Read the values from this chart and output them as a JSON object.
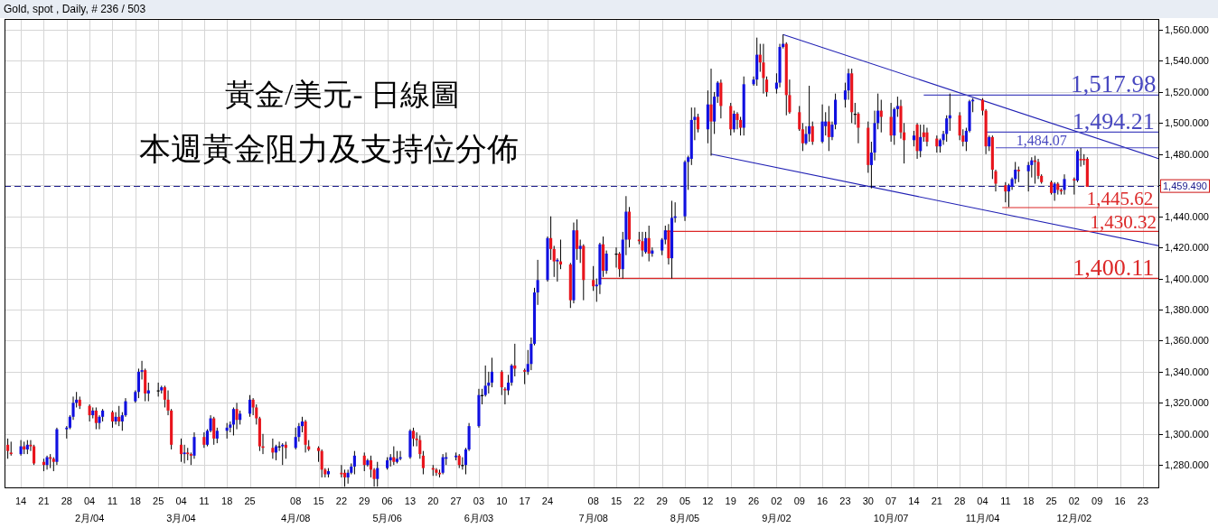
{
  "chart_data": {
    "type": "candlestick",
    "title": "黃金/美元- 日線圖",
    "subtitle": "本週黃金阻力及支持位分佈",
    "annotations": [
      "Gold, spot , Daily, # 236 / 503",
      {
        "text": "1,517.98",
        "x": "--12-14",
        "y": 1517.98
      },
      {
        "text": "1,494.21",
        "x": "--12-14",
        "y": 1494.21
      },
      {
        "text": "1,484.07",
        "x": "--11-22",
        "y": 1484.07
      },
      {
        "text": "1,445.62",
        "x": "--12-16",
        "y": 1445.62
      },
      {
        "text": "1,430.32",
        "x": "--12-17",
        "y": 1430.32
      },
      {
        "text": "1,400.11",
        "x": "--12-14",
        "y": 1400.11
      }
    ],
    "x": [
      "--01-10",
      "--01-11",
      "--01-14",
      "--01-15",
      "--01-16",
      "--01-17",
      "--01-18",
      "--01-21",
      "--01-22",
      "--01-23",
      "--01-24",
      "--01-25",
      "--01-28",
      "--01-29",
      "--01-30",
      "--01-31",
      "--02-01",
      "--02-04",
      "--02-05",
      "--02-06",
      "--02-07",
      "--02-08",
      "--02-11",
      "--02-12",
      "--02-13",
      "--02-14",
      "--02-15",
      "--02-18",
      "--02-19",
      "--02-20",
      "--02-21",
      "--02-22",
      "--02-25",
      "--02-26",
      "--02-27",
      "--02-28",
      "--03-01",
      "--03-04",
      "--03-05",
      "--03-06",
      "--03-07",
      "--03-08",
      "--03-11",
      "--03-12",
      "--03-13",
      "--03-14",
      "--03-15",
      "--03-18",
      "--03-19",
      "--03-20",
      "--03-21",
      "--03-22",
      "--03-25",
      "--03-26",
      "--03-27",
      "--03-28",
      "--03-29",
      "--04-01",
      "--04-02",
      "--04-03",
      "--04-04",
      "--04-05",
      "--04-08",
      "--04-09",
      "--04-10",
      "--04-11",
      "--04-12",
      "--04-15",
      "--04-16",
      "--04-17",
      "--04-18",
      "--04-22",
      "--04-23",
      "--04-24",
      "--04-25",
      "--04-26",
      "--04-29",
      "--04-30",
      "--05-01",
      "--05-02",
      "--05-03",
      "--05-06",
      "--05-07",
      "--05-08",
      "--05-09",
      "--05-10",
      "--05-13",
      "--05-14",
      "--05-15",
      "--05-16",
      "--05-17",
      "--05-20",
      "--05-21",
      "--05-22",
      "--05-23",
      "--05-24",
      "--05-27",
      "--05-28",
      "--05-29",
      "--05-30",
      "--05-31",
      "--06-03",
      "--06-04",
      "--06-05",
      "--06-06",
      "--06-07",
      "--06-10",
      "--06-11",
      "--06-12",
      "--06-13",
      "--06-14",
      "--06-17",
      "--06-18",
      "--06-19",
      "--06-20",
      "--06-21",
      "--06-24",
      "--06-25",
      "--06-26",
      "--06-27",
      "--06-28",
      "--07-01",
      "--07-02",
      "--07-03",
      "--07-04",
      "--07-05",
      "--07-08",
      "--07-09",
      "--07-10",
      "--07-11",
      "--07-12",
      "--07-15",
      "--07-16",
      "--07-17",
      "--07-18",
      "--07-19",
      "--07-22",
      "--07-23",
      "--07-24",
      "--07-25",
      "--07-26",
      "--07-29",
      "--07-30",
      "--07-31",
      "--08-01",
      "--08-02",
      "--08-05",
      "--08-06",
      "--08-07",
      "--08-08",
      "--08-09",
      "--08-12",
      "--08-13",
      "--08-14",
      "--08-15",
      "--08-16",
      "--08-19",
      "--08-20",
      "--08-21",
      "--08-22",
      "--08-23",
      "--08-26",
      "--08-27",
      "--08-28",
      "--08-29",
      "--08-30",
      "--09-02",
      "--09-03",
      "--09-04",
      "--09-05",
      "--09-06",
      "--09-09",
      "--09-10",
      "--09-11",
      "--09-12",
      "--09-13",
      "--09-16",
      "--09-17",
      "--09-18",
      "--09-19",
      "--09-20",
      "--09-23",
      "--09-24",
      "--09-25",
      "--09-26",
      "--09-27",
      "--09-30",
      "--10-01",
      "--10-02",
      "--10-03",
      "--10-04",
      "--10-07",
      "--10-08",
      "--10-09",
      "--10-10",
      "--10-11",
      "--10-14",
      "--10-15",
      "--10-16",
      "--10-17",
      "--10-18",
      "--10-21",
      "--10-22",
      "--10-23",
      "--10-24",
      "--10-25",
      "--10-28",
      "--10-29",
      "--10-30",
      "--10-31",
      "--11-01",
      "--11-04",
      "--11-05",
      "--11-06",
      "--11-07",
      "--11-08",
      "--11-11",
      "--11-12",
      "--11-13",
      "--11-14",
      "--11-15",
      "--11-18",
      "--11-19",
      "--11-20",
      "--11-21",
      "--11-22",
      "--11-25",
      "--11-26",
      "--11-27",
      "--11-28",
      "--11-29",
      "--12-02",
      "--12-03",
      "--12-04",
      "--12-05",
      "--12-06"
    ],
    "ohlc": [
      [
        1293,
        1297,
        1284,
        1289
      ],
      [
        1288,
        1295,
        1286,
        1287
      ],
      [
        1287,
        1296,
        1286,
        1292
      ],
      [
        1292,
        1295,
        1287,
        1290
      ],
      [
        1290,
        1296,
        1287,
        1293
      ],
      [
        1293,
        1296,
        1289,
        1292
      ],
      [
        1292,
        1293,
        1280,
        1281
      ],
      [
        1282,
        1284,
        1276,
        1280
      ],
      [
        1280,
        1286,
        1277,
        1285
      ],
      [
        1285,
        1287,
        1278,
        1284
      ],
      [
        1284,
        1285,
        1276,
        1282
      ],
      [
        1282,
        1304,
        1280,
        1303
      ],
      [
        1303,
        1305,
        1297,
        1304
      ],
      [
        1304,
        1312,
        1303,
        1311
      ],
      [
        1311,
        1324,
        1309,
        1320
      ],
      [
        1320,
        1327,
        1317,
        1322
      ],
      [
        1322,
        1324,
        1316,
        1318
      ],
      [
        1318,
        1319,
        1308,
        1312
      ],
      [
        1312,
        1317,
        1310,
        1315
      ],
      [
        1315,
        1317,
        1303,
        1307
      ],
      [
        1307,
        1312,
        1303,
        1311
      ],
      [
        1311,
        1316,
        1308,
        1315
      ],
      [
        1314,
        1315,
        1304,
        1308
      ],
      [
        1308,
        1314,
        1306,
        1311
      ],
      [
        1311,
        1318,
        1305,
        1308
      ],
      [
        1308,
        1314,
        1302,
        1312
      ],
      [
        1312,
        1323,
        1311,
        1321
      ],
      [
        1321,
        1328,
        1320,
        1327
      ],
      [
        1327,
        1342,
        1323,
        1340
      ],
      [
        1340,
        1347,
        1335,
        1341
      ],
      [
        1341,
        1342,
        1321,
        1326
      ],
      [
        1326,
        1333,
        1321,
        1328
      ],
      [
        1328,
        1333,
        1324,
        1328
      ],
      [
        1328,
        1331,
        1326,
        1330
      ],
      [
        1330,
        1331,
        1317,
        1322
      ],
      [
        1322,
        1328,
        1312,
        1315
      ],
      [
        1315,
        1316,
        1290,
        1293
      ],
      [
        1293,
        1297,
        1282,
        1287
      ],
      [
        1287,
        1293,
        1281,
        1288
      ],
      [
        1288,
        1291,
        1283,
        1287
      ],
      [
        1287,
        1288,
        1280,
        1286
      ],
      [
        1286,
        1301,
        1284,
        1298
      ],
      [
        1298,
        1301,
        1291,
        1293
      ],
      [
        1293,
        1303,
        1292,
        1302
      ],
      [
        1302,
        1312,
        1301,
        1310
      ],
      [
        1310,
        1311,
        1293,
        1297
      ],
      [
        1297,
        1304,
        1294,
        1302
      ],
      [
        1302,
        1307,
        1297,
        1304
      ],
      [
        1304,
        1308,
        1301,
        1306
      ],
      [
        1306,
        1317,
        1299,
        1316
      ],
      [
        1316,
        1320,
        1303,
        1309
      ],
      [
        1309,
        1315,
        1306,
        1313
      ],
      [
        1313,
        1325,
        1311,
        1322
      ],
      [
        1322,
        1323,
        1312,
        1317
      ],
      [
        1317,
        1319,
        1306,
        1310
      ],
      [
        1310,
        1311,
        1289,
        1292
      ],
      [
        1292,
        1300,
        1287,
        1291
      ],
      [
        1291,
        1297,
        1284,
        1288
      ],
      [
        1288,
        1293,
        1283,
        1292
      ],
      [
        1292,
        1295,
        1289,
        1292
      ],
      [
        1292,
        1294,
        1280,
        1293
      ],
      [
        1293,
        1295,
        1284,
        1291
      ],
      [
        1291,
        1304,
        1290,
        1298
      ],
      [
        1298,
        1307,
        1295,
        1305
      ],
      [
        1305,
        1311,
        1301,
        1308
      ],
      [
        1308,
        1309,
        1288,
        1293
      ],
      [
        1292,
        1296,
        1289,
        1290
      ],
      [
        1291,
        1292,
        1282,
        1289
      ],
      [
        1289,
        1290,
        1272,
        1277
      ],
      [
        1277,
        1278,
        1272,
        1274
      ],
      [
        1274,
        1278,
        1272,
        1276
      ],
      [
        1275,
        1280,
        1272,
        1274
      ],
      [
        1275,
        1277,
        1266,
        1272
      ],
      [
        1272,
        1277,
        1268,
        1275
      ],
      [
        1275,
        1281,
        1274,
        1279
      ],
      [
        1279,
        1289,
        1274,
        1286
      ],
      [
        1286,
        1288,
        1276,
        1280
      ],
      [
        1280,
        1284,
        1279,
        1283
      ],
      [
        1283,
        1286,
        1272,
        1277
      ],
      [
        1277,
        1278,
        1266,
        1271
      ],
      [
        1271,
        1282,
        1266,
        1278
      ],
      [
        1278,
        1285,
        1277,
        1283
      ],
      [
        1283,
        1287,
        1279,
        1285
      ],
      [
        1285,
        1292,
        1280,
        1282
      ],
      [
        1282,
        1289,
        1281,
        1284
      ],
      [
        1284,
        1289,
        1283,
        1285
      ],
      [
        1285,
        1303,
        1284,
        1302
      ],
      [
        1302,
        1304,
        1292,
        1297
      ],
      [
        1297,
        1301,
        1292,
        1296
      ],
      [
        1296,
        1299,
        1284,
        1287
      ],
      [
        1286,
        1289,
        1274,
        1278
      ],
      [
        1278,
        1280,
        1273,
        1277
      ],
      [
        1277,
        1278,
        1273,
        1275
      ],
      [
        1275,
        1277,
        1272,
        1274
      ],
      [
        1275,
        1287,
        1274,
        1285
      ],
      [
        1284,
        1288,
        1280,
        1285
      ],
      [
        1285,
        1288,
        1283,
        1286
      ],
      [
        1286,
        1287,
        1278,
        1280
      ],
      [
        1280,
        1285,
        1277,
        1280
      ],
      [
        1280,
        1291,
        1274,
        1290
      ],
      [
        1290,
        1307,
        1289,
        1305
      ],
      [
        1305,
        1329,
        1304,
        1325
      ],
      [
        1325,
        1329,
        1319,
        1325
      ],
      [
        1325,
        1344,
        1324,
        1331
      ],
      [
        1331,
        1340,
        1326,
        1333
      ],
      [
        1333,
        1349,
        1330,
        1340
      ],
      [
        1340,
        1341,
        1325,
        1330
      ],
      [
        1329,
        1330,
        1319,
        1328
      ],
      [
        1328,
        1338,
        1325,
        1333
      ],
      [
        1333,
        1345,
        1331,
        1344
      ],
      [
        1344,
        1358,
        1337,
        1342
      ],
      [
        1341,
        1342,
        1332,
        1340
      ],
      [
        1340,
        1354,
        1338,
        1345
      ],
      [
        1345,
        1362,
        1341,
        1358
      ],
      [
        1358,
        1394,
        1357,
        1391
      ],
      [
        1391,
        1412,
        1383,
        1399
      ],
      [
        1399,
        1427,
        1398,
        1426
      ],
      [
        1426,
        1440,
        1412,
        1419
      ],
      [
        1419,
        1421,
        1401,
        1411
      ],
      [
        1411,
        1413,
        1398,
        1412
      ],
      [
        1411,
        1425,
        1406,
        1409
      ],
      [
        1409,
        1410,
        1381,
        1386
      ],
      [
        1386,
        1436,
        1384,
        1431
      ],
      [
        1431,
        1438,
        1412,
        1419
      ],
      [
        1419,
        1425,
        1410,
        1421
      ],
      [
        1421,
        1422,
        1386,
        1399
      ],
      [
        1399,
        1408,
        1392,
        1395
      ],
      [
        1395,
        1400,
        1385,
        1396
      ],
      [
        1396,
        1423,
        1390,
        1422
      ],
      [
        1422,
        1427,
        1401,
        1405
      ],
      [
        1405,
        1418,
        1403,
        1416
      ],
      [
        1416,
        1420,
        1407,
        1416
      ],
      [
        1416,
        1417,
        1401,
        1406
      ],
      [
        1406,
        1430,
        1400,
        1425
      ],
      [
        1425,
        1453,
        1415,
        1443
      ],
      [
        1443,
        1446,
        1420,
        1425
      ],
      [
        1425,
        1430,
        1422,
        1424
      ],
      [
        1424,
        1430,
        1414,
        1418
      ],
      [
        1417,
        1430,
        1416,
        1426
      ],
      [
        1426,
        1434,
        1411,
        1416
      ],
      [
        1416,
        1420,
        1414,
        1418
      ],
      [
        1418,
        1426,
        1415,
        1425
      ],
      [
        1425,
        1434,
        1422,
        1431
      ],
      [
        1431,
        1435,
        1409,
        1413
      ],
      [
        1413,
        1450,
        1400,
        1439
      ],
      [
        1439,
        1449,
        1436,
        1440
      ],
      [
        1440,
        1476,
        1437,
        1475
      ],
      [
        1475,
        1479,
        1457,
        1478
      ],
      [
        1477,
        1510,
        1473,
        1502
      ],
      [
        1502,
        1510,
        1489,
        1504
      ],
      [
        1504,
        1506,
        1494,
        1496
      ],
      [
        1496,
        1521,
        1487,
        1512
      ],
      [
        1512,
        1535,
        1479,
        1501
      ],
      [
        1501,
        1520,
        1493,
        1517
      ],
      [
        1517,
        1527,
        1513,
        1526
      ],
      [
        1526,
        1528,
        1503,
        1511
      ],
      [
        1511,
        1513,
        1492,
        1496
      ],
      [
        1496,
        1508,
        1494,
        1506
      ],
      [
        1506,
        1507,
        1496,
        1502
      ],
      [
        1502,
        1504,
        1492,
        1497
      ],
      [
        1497,
        1530,
        1492,
        1525
      ],
      [
        1525,
        1530,
        1524,
        1528
      ],
      [
        1528,
        1555,
        1524,
        1544
      ],
      [
        1544,
        1551,
        1533,
        1539
      ],
      [
        1539,
        1551,
        1519,
        1529
      ],
      [
        1528,
        1530,
        1517,
        1520
      ],
      [
        1522,
        1532,
        1519,
        1526
      ],
      [
        1526,
        1551,
        1523,
        1549
      ],
      [
        1549,
        1557,
        1548,
        1551
      ],
      [
        1551,
        1552,
        1505,
        1518
      ],
      [
        1518,
        1528,
        1506,
        1507
      ],
      [
        1507,
        1511,
        1495,
        1496
      ],
      [
        1496,
        1500,
        1482,
        1487
      ],
      [
        1487,
        1498,
        1486,
        1493
      ],
      [
        1493,
        1524,
        1488,
        1498
      ],
      [
        1498,
        1501,
        1486,
        1488
      ],
      [
        1488,
        1512,
        1487,
        1501
      ],
      [
        1498,
        1507,
        1492,
        1501
      ],
      [
        1501,
        1511,
        1482,
        1491
      ],
      [
        1491,
        1501,
        1489,
        1499
      ],
      [
        1499,
        1519,
        1496,
        1515
      ],
      [
        1515,
        1526,
        1510,
        1521
      ],
      [
        1521,
        1535,
        1515,
        1532
      ],
      [
        1532,
        1535,
        1500,
        1507
      ],
      [
        1506,
        1513,
        1499,
        1506
      ],
      [
        1506,
        1507,
        1487,
        1497
      ],
      [
        1497,
        1501,
        1468,
        1473
      ],
      [
        1473,
        1488,
        1458,
        1481
      ],
      [
        1481,
        1508,
        1476,
        1500
      ],
      [
        1500,
        1519,
        1496,
        1508
      ],
      [
        1508,
        1515,
        1494,
        1504
      ],
      [
        1504,
        1513,
        1488,
        1492
      ],
      [
        1492,
        1510,
        1486,
        1509
      ],
      [
        1509,
        1517,
        1504,
        1511
      ],
      [
        1511,
        1515,
        1490,
        1494
      ],
      [
        1494,
        1500,
        1474,
        1489
      ],
      [
        1489,
        1495,
        1485,
        1492
      ],
      [
        1499,
        1500,
        1477,
        1482
      ],
      [
        1482,
        1499,
        1478,
        1491
      ],
      [
        1494,
        1499,
        1488,
        1491
      ],
      [
        1494,
        1497,
        1485,
        1488
      ],
      [
        1490,
        1492,
        1481,
        1485
      ],
      [
        1485,
        1490,
        1481,
        1489
      ],
      [
        1489,
        1495,
        1486,
        1493
      ],
      [
        1493,
        1505,
        1488,
        1503
      ],
      [
        1503,
        1519,
        1495,
        1505
      ],
      [
        1505,
        1507,
        1489,
        1492
      ],
      [
        1492,
        1496,
        1485,
        1488
      ],
      [
        1488,
        1497,
        1482,
        1495
      ],
      [
        1495,
        1515,
        1494,
        1514
      ],
      [
        1514,
        1516,
        1507,
        1515
      ],
      [
        1515,
        1516,
        1505,
        1508
      ],
      [
        1508,
        1509,
        1480,
        1485
      ],
      [
        1485,
        1492,
        1482,
        1491
      ],
      [
        1491,
        1492,
        1464,
        1470
      ],
      [
        1469,
        1470,
        1456,
        1461
      ],
      [
        1460,
        1462,
        1449,
        1456
      ],
      [
        1456,
        1461,
        1446,
        1460
      ],
      [
        1459,
        1465,
        1457,
        1464
      ],
      [
        1464,
        1475,
        1461,
        1470
      ],
      [
        1470,
        1472,
        1462,
        1469
      ],
      [
        1469,
        1475,
        1456,
        1473
      ],
      [
        1473,
        1478,
        1465,
        1476
      ],
      [
        1476,
        1479,
        1461,
        1475
      ],
      [
        1475,
        1477,
        1464,
        1466
      ],
      [
        1466,
        1467,
        1461,
        1462
      ],
      [
        1462,
        1463,
        1454,
        1455
      ],
      [
        1455,
        1462,
        1450,
        1461
      ],
      [
        1461,
        1462,
        1454,
        1457
      ],
      [
        1457,
        1458,
        1454,
        1456
      ],
      [
        1457,
        1467,
        1454,
        1464
      ],
      [
        1464,
        1465,
        1454,
        1463
      ],
      [
        1463,
        1483,
        1462,
        1482
      ],
      [
        1477,
        1484,
        1472,
        1476
      ],
      [
        1477,
        1480,
        1473,
        1476
      ],
      [
        1477,
        1478,
        1459,
        1459
      ]
    ],
    "colors": [
      "#e8141c",
      "#e8141c",
      "#1010e0",
      "#e8141c",
      "#1010e0",
      "#e8141c",
      "#e8141c",
      "#e8141c",
      "#1010e0",
      "#e8141c",
      "#e8141c",
      "#1010e0",
      "#1010e0",
      "#1010e0",
      "#1010e0",
      "#1010e0",
      "#e8141c",
      "#e8141c",
      "#1010e0",
      "#e8141c",
      "#1010e0",
      "#1010e0",
      "#e8141c",
      "#1010e0",
      "#e8141c",
      "#1010e0",
      "#1010e0",
      "#1010e0",
      "#1010e0",
      "#1010e0",
      "#e8141c",
      "#1010e0",
      "#000000",
      "#1010e0",
      "#e8141c",
      "#e8141c",
      "#e8141c",
      "#e8141c",
      "#1010e0",
      "#e8141c",
      "#e8141c",
      "#1010e0",
      "#e8141c",
      "#1010e0",
      "#1010e0",
      "#e8141c",
      "#1010e0",
      "#1010e0",
      "#1010e0",
      "#1010e0",
      "#e8141c",
      "#1010e0",
      "#1010e0",
      "#e8141c",
      "#e8141c",
      "#e8141c",
      "#e8141c",
      "#e8141c",
      "#1010e0",
      "#000000",
      "#1010e0",
      "#e8141c",
      "#1010e0",
      "#1010e0",
      "#1010e0",
      "#e8141c",
      "#e8141c",
      "#e8141c",
      "#e8141c",
      "#e8141c",
      "#1010e0",
      "#e8141c",
      "#e8141c",
      "#1010e0",
      "#1010e0",
      "#1010e0",
      "#e8141c",
      "#1010e0",
      "#e8141c",
      "#e8141c",
      "#1010e0",
      "#1010e0",
      "#1010e0",
      "#e8141c",
      "#1010e0",
      "#1010e0",
      "#1010e0",
      "#e8141c",
      "#e8141c",
      "#e8141c",
      "#e8141c",
      "#e8141c",
      "#e8141c",
      "#e8141c",
      "#1010e0",
      "#1010e0",
      "#1010e0",
      "#e8141c",
      "#000000",
      "#1010e0",
      "#1010e0",
      "#1010e0",
      "#000000",
      "#1010e0",
      "#1010e0",
      "#1010e0",
      "#e8141c",
      "#e8141c",
      "#1010e0",
      "#1010e0",
      "#e8141c",
      "#e8141c",
      "#1010e0",
      "#1010e0",
      "#1010e0",
      "#1010e0",
      "#1010e0",
      "#e8141c",
      "#e8141c",
      "#1010e0",
      "#e8141c",
      "#e8141c",
      "#1010e0",
      "#e8141c",
      "#1010e0",
      "#e8141c",
      "#e8141c",
      "#1010e0",
      "#1010e0",
      "#e8141c",
      "#1010e0",
      "#000000",
      "#e8141c",
      "#1010e0",
      "#1010e0",
      "#e8141c",
      "#e8141c",
      "#e8141c",
      "#1010e0",
      "#e8141c",
      "#1010e0",
      "#1010e0",
      "#1010e0",
      "#e8141c",
      "#1010e0",
      "#1010e0",
      "#1010e0",
      "#1010e0",
      "#1010e0",
      "#1010e0",
      "#e8141c",
      "#1010e0",
      "#e8141c",
      "#1010e0",
      "#1010e0",
      "#e8141c",
      "#e8141c",
      "#1010e0",
      "#e8141c",
      "#e8141c",
      "#1010e0",
      "#1010e0",
      "#1010e0",
      "#e8141c",
      "#e8141c",
      "#e8141c",
      "#1010e0",
      "#1010e0",
      "#1010e0",
      "#e8141c",
      "#e8141c",
      "#e8141c",
      "#e8141c",
      "#1010e0",
      "#1010e0",
      "#e8141c",
      "#1010e0",
      "#1010e0",
      "#e8141c",
      "#1010e0",
      "#1010e0",
      "#1010e0",
      "#1010e0",
      "#e8141c",
      "#000000",
      "#e8141c",
      "#e8141c",
      "#1010e0",
      "#1010e0",
      "#1010e0",
      "#e8141c",
      "#e8141c",
      "#1010e0",
      "#1010e0",
      "#e8141c",
      "#e8141c",
      "#1010e0",
      "#e8141c",
      "#1010e0",
      "#e8141c",
      "#e8141c",
      "#e8141c",
      "#1010e0",
      "#1010e0",
      "#1010e0",
      "#1010e0",
      "#e8141c",
      "#e8141c",
      "#1010e0",
      "#1010e0",
      "#1010e0",
      "#e8141c",
      "#e8141c",
      "#1010e0",
      "#e8141c",
      "#e8141c",
      "#e8141c",
      "#1010e0",
      "#1010e0",
      "#1010e0",
      "#e8141c",
      "#1010e0",
      "#1010e0",
      "#e8141c",
      "#e8141c",
      "#e8141c",
      "#e8141c",
      "#1010e0",
      "#e8141c",
      "#e8141c",
      "#1010e0",
      "#e8141c",
      "#1010e0",
      "#e8141c",
      "#e8141c",
      "#e8141c"
    ],
    "series": [
      {
        "type": "line",
        "x": [
          "--09-04",
          "--12-28"
        ],
        "values": [
          1557,
          1477
        ],
        "color": "#2020b4"
      },
      {
        "type": "line",
        "x": [
          "--08-13",
          "--12-28"
        ],
        "values": [
          1480,
          1421
        ],
        "color": "#2020b4"
      },
      {
        "type": "line",
        "x": [
          "--10-17",
          "--12-28"
        ],
        "values": [
          1517.98,
          1517.98
        ],
        "color": "#4848c0"
      },
      {
        "type": "line",
        "x": [
          "--11-05",
          "--12-28"
        ],
        "values": [
          1494.21,
          1494.21
        ],
        "color": "#4848c0"
      },
      {
        "type": "line",
        "x": [
          "--11-08",
          "--12-28"
        ],
        "values": [
          1484.07,
          1484.07
        ],
        "color": "#4848c0"
      },
      {
        "type": "line",
        "x": [
          "--11-10",
          "--12-28"
        ],
        "values": [
          1445.62,
          1445.62
        ],
        "color": "#dc2828"
      },
      {
        "type": "line",
        "x": [
          "--07-30",
          "--12-28"
        ],
        "values": [
          1430.32,
          1430.32
        ],
        "color": "#dc2828"
      },
      {
        "type": "line",
        "x": [
          "--07-10",
          "--12-28"
        ],
        "values": [
          1400.11,
          1400.11
        ],
        "color": "#dc2828"
      }
    ],
    "ref_lines": [
      {
        "axis": "y",
        "value": 1459.49,
        "label": "1,459.490",
        "color": "#1a1a8c",
        "line_style": "dashed"
      }
    ],
    "xlim": [
      "--01-09",
      "--12-28"
    ],
    "xticks": [
      {
        "value": "--01-14",
        "label": "14"
      },
      {
        "value": "--01-21",
        "label": "21"
      },
      {
        "value": "--01-28",
        "label": "28"
      },
      {
        "value": "--02-04",
        "label": "04\n2月/04"
      },
      {
        "value": "--02-11",
        "label": "11"
      },
      {
        "value": "--02-18",
        "label": "18"
      },
      {
        "value": "--02-25",
        "label": "25"
      },
      {
        "value": "--03-04",
        "label": "04\n3月/04"
      },
      {
        "value": "--03-11",
        "label": "11"
      },
      {
        "value": "--03-18",
        "label": "18"
      },
      {
        "value": "--03-25",
        "label": "25"
      },
      {
        "value": "--04-08",
        "label": "08\n4月/08"
      },
      {
        "value": "--04-15",
        "label": "15"
      },
      {
        "value": "--04-22",
        "label": "22"
      },
      {
        "value": "--04-29",
        "label": "29"
      },
      {
        "value": "--05-06",
        "label": "06\n5月/06"
      },
      {
        "value": "--05-13",
        "label": "13"
      },
      {
        "value": "--05-20",
        "label": "20"
      },
      {
        "value": "--05-27",
        "label": "27"
      },
      {
        "value": "--06-03",
        "label": "03\n6月/03"
      },
      {
        "value": "--06-10",
        "label": "10"
      },
      {
        "value": "--06-17",
        "label": "17"
      },
      {
        "value": "--06-24",
        "label": "24"
      },
      {
        "value": "--07-08",
        "label": "08\n7月/08"
      },
      {
        "value": "--07-15",
        "label": "15"
      },
      {
        "value": "--07-22",
        "label": "22"
      },
      {
        "value": "--07-29",
        "label": "29"
      },
      {
        "value": "--08-05",
        "label": "05\n8月/05"
      },
      {
        "value": "--08-12",
        "label": "12"
      },
      {
        "value": "--08-19",
        "label": "19"
      },
      {
        "value": "--08-26",
        "label": "26"
      },
      {
        "value": "--09-02",
        "label": "02\n9月/02"
      },
      {
        "value": "--09-09",
        "label": "09"
      },
      {
        "value": "--09-16",
        "label": "16"
      },
      {
        "value": "--09-23",
        "label": "23"
      },
      {
        "value": "--09-30",
        "label": "30"
      },
      {
        "value": "--10-07",
        "label": "07\n10月/07"
      },
      {
        "value": "--10-14",
        "label": "14"
      },
      {
        "value": "--10-21",
        "label": "21"
      },
      {
        "value": "--10-28",
        "label": "28"
      },
      {
        "value": "--11-04",
        "label": "04\n11月/04"
      },
      {
        "value": "--11-11",
        "label": "11"
      },
      {
        "value": "--11-18",
        "label": "18"
      },
      {
        "value": "--11-25",
        "label": "25"
      },
      {
        "value": "--12-02",
        "label": "02\n12月/02"
      },
      {
        "value": "--12-09",
        "label": "09"
      },
      {
        "value": "--12-16",
        "label": "16"
      },
      {
        "value": "--12-23",
        "label": "23"
      }
    ],
    "ylim": [
      1265,
      1567
    ],
    "yticks": [
      {
        "value": 1280,
        "label": "1,280.000"
      },
      {
        "value": 1300,
        "label": "1,300.000"
      },
      {
        "value": 1320,
        "label": "1,320.000"
      },
      {
        "value": 1340,
        "label": "1,340.000"
      },
      {
        "value": 1360,
        "label": "1,360.000"
      },
      {
        "value": 1380,
        "label": "1,380.000"
      },
      {
        "value": 1400,
        "label": "1,400.000"
      },
      {
        "value": 1420,
        "label": "1,420.000"
      },
      {
        "value": 1440,
        "label": "1,440.000"
      },
      {
        "value": 1460,
        "label": null
      },
      {
        "value": 1480,
        "label": "1,480.000"
      },
      {
        "value": 1500,
        "label": "1,500.000"
      },
      {
        "value": 1520,
        "label": "1,520.000"
      },
      {
        "value": 1540,
        "label": "1,540.000"
      },
      {
        "value": 1560,
        "label": "1,560.000"
      }
    ],
    "grid": true
  }
}
